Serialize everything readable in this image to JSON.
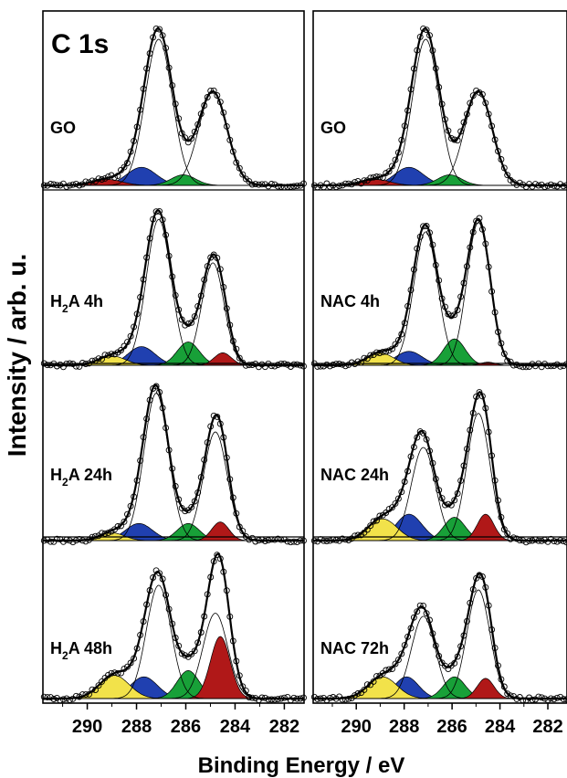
{
  "figure": {
    "element_label": "C 1s",
    "ylabel": "Intensity / arb. u.",
    "xlabel": "Binding Energy / eV"
  },
  "colors": {
    "peak_c_c": "#b01818",
    "peak_c_oh": "#18a038",
    "peak_c_o": "#2040b0",
    "peak_o_c_o": "#f2e24a",
    "fit": "#000000",
    "data_points": "#000000"
  },
  "chart_data": {
    "type": "line",
    "xlabel": "Binding Energy / eV",
    "ylabel": "Intensity / arb. u.",
    "xlim": [
      291.8,
      281.2
    ],
    "x_reversed": true,
    "x_ticks": [
      290,
      288,
      286,
      284,
      282
    ],
    "panels_left": [
      {
        "label": "GO",
        "sub": "",
        "label_suffix": "",
        "peaks": [
          {
            "center": 287.1,
            "height": 0.97,
            "width": 0.55
          },
          {
            "center": 284.9,
            "height": 0.62,
            "width": 0.58
          },
          {
            "center": 287.8,
            "height": 0.12,
            "width": 0.6
          },
          {
            "center": 286.1,
            "height": 0.07,
            "width": 0.5
          },
          {
            "center": 289.2,
            "height": 0.04,
            "width": 0.6
          }
        ]
      },
      {
        "label": "H",
        "sub": "2",
        "label_suffix": "A 4h",
        "peaks": [
          {
            "center": 287.1,
            "height": 0.94,
            "width": 0.5
          },
          {
            "center": 284.9,
            "height": 0.66,
            "width": 0.45
          },
          {
            "center": 287.8,
            "height": 0.12,
            "width": 0.55
          },
          {
            "center": 285.9,
            "height": 0.15,
            "width": 0.45
          },
          {
            "center": 284.5,
            "height": 0.08,
            "width": 0.35
          },
          {
            "center": 289.0,
            "height": 0.06,
            "width": 0.55
          }
        ]
      },
      {
        "label": "H",
        "sub": "2",
        "label_suffix": "A 24h",
        "peaks": [
          {
            "center": 287.2,
            "height": 0.95,
            "width": 0.5
          },
          {
            "center": 284.8,
            "height": 0.7,
            "width": 0.48
          },
          {
            "center": 287.9,
            "height": 0.11,
            "width": 0.55
          },
          {
            "center": 285.9,
            "height": 0.11,
            "width": 0.45
          },
          {
            "center": 284.6,
            "height": 0.12,
            "width": 0.35
          },
          {
            "center": 289.0,
            "height": 0.05,
            "width": 0.5
          }
        ]
      },
      {
        "label": "H",
        "sub": "2",
        "label_suffix": "A 48h",
        "peaks": [
          {
            "center": 287.1,
            "height": 0.73,
            "width": 0.5
          },
          {
            "center": 284.8,
            "height": 0.55,
            "width": 0.5
          },
          {
            "center": 287.7,
            "height": 0.14,
            "width": 0.55
          },
          {
            "center": 285.9,
            "height": 0.18,
            "width": 0.45
          },
          {
            "center": 284.6,
            "height": 0.4,
            "width": 0.4
          },
          {
            "center": 288.9,
            "height": 0.15,
            "width": 0.6
          }
        ]
      }
    ],
    "panels_right": [
      {
        "label": "GO",
        "sub": "",
        "label_suffix": "",
        "peaks": [
          {
            "center": 287.1,
            "height": 0.97,
            "width": 0.55
          },
          {
            "center": 284.9,
            "height": 0.62,
            "width": 0.58
          },
          {
            "center": 287.8,
            "height": 0.12,
            "width": 0.6
          },
          {
            "center": 286.1,
            "height": 0.07,
            "width": 0.5
          },
          {
            "center": 289.2,
            "height": 0.04,
            "width": 0.6
          }
        ]
      },
      {
        "label": "NAC 4h",
        "sub": "",
        "label_suffix": "",
        "peaks": [
          {
            "center": 287.1,
            "height": 0.86,
            "width": 0.5
          },
          {
            "center": 284.9,
            "height": 0.92,
            "width": 0.48
          },
          {
            "center": 287.8,
            "height": 0.09,
            "width": 0.55
          },
          {
            "center": 285.9,
            "height": 0.17,
            "width": 0.45
          },
          {
            "center": 284.5,
            "height": 0.02,
            "width": 0.3
          },
          {
            "center": 289.0,
            "height": 0.08,
            "width": 0.55
          }
        ]
      },
      {
        "label": "NAC 24h",
        "sub": "",
        "label_suffix": "",
        "peaks": [
          {
            "center": 287.2,
            "height": 0.6,
            "width": 0.5
          },
          {
            "center": 284.9,
            "height": 0.82,
            "width": 0.48
          },
          {
            "center": 287.8,
            "height": 0.17,
            "width": 0.55
          },
          {
            "center": 285.9,
            "height": 0.15,
            "width": 0.45
          },
          {
            "center": 284.6,
            "height": 0.17,
            "width": 0.35
          },
          {
            "center": 288.9,
            "height": 0.14,
            "width": 0.6
          }
        ]
      },
      {
        "label": "NAC 72h",
        "sub": "",
        "label_suffix": "",
        "peaks": [
          {
            "center": 287.2,
            "height": 0.53,
            "width": 0.5
          },
          {
            "center": 284.9,
            "height": 0.7,
            "width": 0.48
          },
          {
            "center": 287.9,
            "height": 0.14,
            "width": 0.5
          },
          {
            "center": 285.9,
            "height": 0.14,
            "width": 0.45
          },
          {
            "center": 284.6,
            "height": 0.13,
            "width": 0.35
          },
          {
            "center": 288.9,
            "height": 0.14,
            "width": 0.6
          }
        ]
      }
    ],
    "grid": false,
    "legend": "none"
  }
}
